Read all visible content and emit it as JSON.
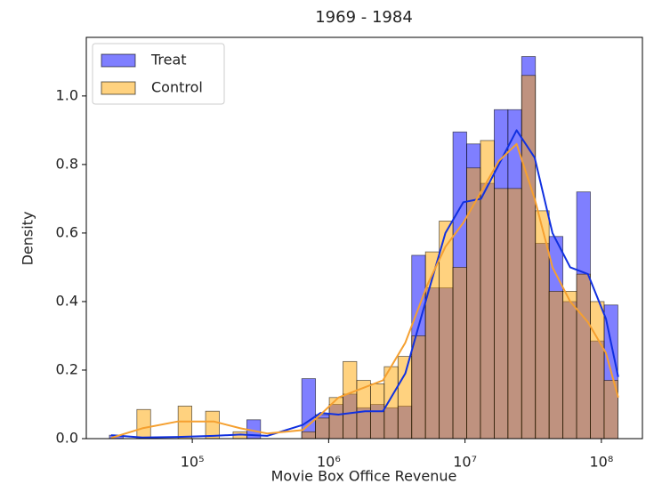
{
  "chart_data": {
    "type": "histogram",
    "title": "1969 - 1984",
    "x_label": "Movie Box Office Revenue",
    "y_label": "Density",
    "x_log_scale": true,
    "grid": false,
    "legend_position": "upper left",
    "xlim": [
      16700,
      200000000
    ],
    "ylim": [
      0,
      1.171
    ],
    "xticks": [
      {
        "value": 100000,
        "label": "10⁵"
      },
      {
        "value": 1000000,
        "label": "10⁶"
      },
      {
        "value": 10000000,
        "label": "10⁷"
      },
      {
        "value": 100000000,
        "label": "10⁸"
      }
    ],
    "yticks": [
      {
        "value": 0,
        "label": "0.0"
      },
      {
        "value": 0.2,
        "label": "0.2"
      },
      {
        "value": 0.4,
        "label": "0.4"
      },
      {
        "value": 0.6,
        "label": "0.6"
      },
      {
        "value": 0.8,
        "label": "0.8"
      },
      {
        "value": 1,
        "label": "1.0"
      }
    ],
    "bins": [
      24660,
      31100,
      39220,
      49470,
      62390,
      78680,
      99230,
      125150,
      157840,
      199070,
      251070,
      316650,
      399360,
      503670,
      635230,
      801150,
      1010400,
      1274300,
      1607200,
      2027000,
      2556400,
      3224100,
      4066200,
      5128200,
      6467700,
      8157000,
      10288000,
      12975000,
      16364000,
      20638000,
      26029000,
      32828000,
      41403000,
      52217000,
      65856000,
      83058000,
      104750000,
      132110000
    ],
    "kde_x": [
      25400,
      43000,
      78500,
      143600,
      225500,
      354000,
      646000,
      873000,
      1180000,
      1850000,
      2500000,
      3650000,
      5310000,
      7180000,
      9710000,
      13100000,
      17700000,
      23900000,
      32400000,
      43800000,
      59000000,
      79800000,
      108000000,
      133000000
    ],
    "series": [
      {
        "name": "Treat",
        "color": "#0000ff",
        "line_color": "#1030e0",
        "values": [
          0.01,
          0,
          0,
          0,
          0,
          0,
          0,
          0,
          0,
          0,
          0.055,
          0,
          0,
          0,
          0.175,
          0.07,
          0.1,
          0.13,
          0.09,
          0.1,
          0.09,
          0.095,
          0.535,
          0.44,
          0.44,
          0.895,
          0.86,
          0.745,
          0.96,
          0.96,
          1.115,
          0.57,
          0.59,
          0.4,
          0.72,
          0.285,
          0.39
        ],
        "kde": [
          0.01,
          0.003,
          0.005,
          0.008,
          0.012,
          0.008,
          0.04,
          0.075,
          0.07,
          0.08,
          0.08,
          0.19,
          0.42,
          0.6,
          0.69,
          0.7,
          0.8,
          0.9,
          0.82,
          0.6,
          0.5,
          0.48,
          0.35,
          0.18
        ]
      },
      {
        "name": "Control",
        "color": "#ffa500",
        "line_color": "#f5a030",
        "values": [
          0,
          0,
          0.085,
          0,
          0,
          0.095,
          0,
          0.08,
          0,
          0.02,
          0,
          0,
          0,
          0,
          0.02,
          0.06,
          0.12,
          0.225,
          0.17,
          0.16,
          0.21,
          0.24,
          0.3,
          0.545,
          0.635,
          0.5,
          0.79,
          0.87,
          0.73,
          0.73,
          1.06,
          0.665,
          0.43,
          0.43,
          0.48,
          0.4,
          0.17
        ],
        "kde": [
          0.002,
          0.03,
          0.05,
          0.05,
          0.03,
          0.015,
          0.025,
          0.07,
          0.12,
          0.15,
          0.17,
          0.28,
          0.45,
          0.56,
          0.63,
          0.72,
          0.81,
          0.86,
          0.7,
          0.5,
          0.4,
          0.34,
          0.25,
          0.12
        ]
      }
    ]
  }
}
